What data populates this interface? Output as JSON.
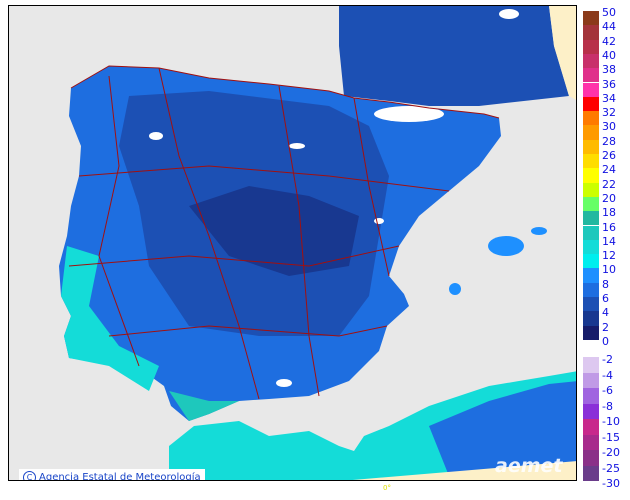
{
  "credit": "Agencia Estatal de Meteorología",
  "logo": "aemet",
  "longitude_label": "0°",
  "legend": {
    "positive": [
      {
        "label": "50",
        "color": "#8b3a1a"
      },
      {
        "label": "44",
        "color": "#a3343a"
      },
      {
        "label": "42",
        "color": "#b8304a"
      },
      {
        "label": "40",
        "color": "#c8306a"
      },
      {
        "label": "38",
        "color": "#e0308a"
      },
      {
        "label": "36",
        "color": "#ff33aa"
      },
      {
        "label": "34",
        "color": "#ff0000"
      },
      {
        "label": "32",
        "color": "#ff7a00"
      },
      {
        "label": "30",
        "color": "#ff9a00"
      },
      {
        "label": "28",
        "color": "#ffbb00"
      },
      {
        "label": "26",
        "color": "#ffdd00"
      },
      {
        "label": "24",
        "color": "#ffff00"
      },
      {
        "label": "22",
        "color": "#ccff00"
      },
      {
        "label": "20",
        "color": "#66ff66"
      },
      {
        "label": "18",
        "color": "#22b8a0"
      },
      {
        "label": "16",
        "color": "#1ec8bc"
      },
      {
        "label": "14",
        "color": "#14dcd8"
      },
      {
        "label": "12",
        "color": "#00eeee"
      },
      {
        "label": "10",
        "color": "#1e90ff"
      },
      {
        "label": "8",
        "color": "#1e6ee0"
      },
      {
        "label": "6",
        "color": "#1c50b4"
      },
      {
        "label": "4",
        "color": "#183890"
      },
      {
        "label": "2",
        "color": "#161c6a"
      }
    ],
    "zero_label": "0",
    "negative": [
      {
        "label": "-2",
        "color": "#ddc8f0"
      },
      {
        "label": "-4",
        "color": "#c09ae6"
      },
      {
        "label": "-6",
        "color": "#a064e0"
      },
      {
        "label": "-8",
        "color": "#8a30d8"
      },
      {
        "label": "-10",
        "color": "#c8288c"
      },
      {
        "label": "-15",
        "color": "#a82a8c"
      },
      {
        "label": "-20",
        "color": "#8a3088"
      },
      {
        "label": "-25",
        "color": "#6a3c8a"
      }
    ],
    "bottom_label": "-30"
  }
}
